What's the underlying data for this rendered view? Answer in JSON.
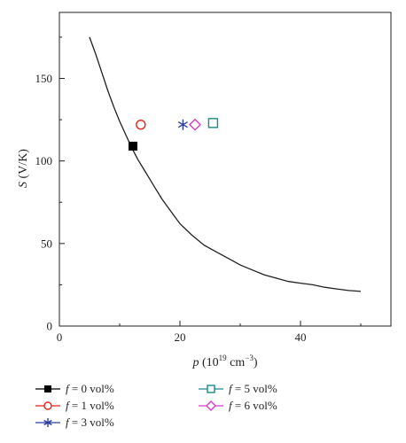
{
  "chart_data": {
    "type": "scatter",
    "xlabel": {
      "var": "p",
      "rest_prefix": " (10",
      "sup": "19",
      "unit": " cm",
      "unit_sup": "−3",
      "close": ")"
    },
    "ylabel": {
      "var": "S",
      "rest": " (V/K)"
    },
    "xlim": [
      0,
      55
    ],
    "ylim": [
      0,
      190
    ],
    "xticks": [
      0,
      20,
      40
    ],
    "yticks": [
      0,
      50,
      100,
      150
    ],
    "grid": false,
    "legend_position": "bottom",
    "curve": {
      "x": [
        5,
        6,
        7,
        8,
        9,
        10,
        11,
        12,
        13,
        14,
        15,
        16,
        17,
        18,
        19,
        20,
        22,
        24,
        26,
        28,
        30,
        32,
        34,
        36,
        38,
        40,
        42,
        44,
        46,
        48,
        50
      ],
      "y": [
        175,
        165,
        154,
        143,
        133,
        124,
        116,
        108,
        101,
        95,
        89,
        83,
        77,
        72,
        67,
        62,
        55,
        49,
        45,
        41,
        37,
        34,
        31,
        29,
        27,
        26,
        25,
        23.5,
        22.5,
        21.5,
        21
      ],
      "color": "#231f20"
    },
    "series": [
      {
        "name": "f = 0 vol%",
        "var": "f",
        "label": " = 0 vol%",
        "x": [
          12.2
        ],
        "y": [
          109
        ],
        "marker": "square-filled",
        "color": "#000000"
      },
      {
        "name": "f = 1 vol%",
        "var": "f",
        "label": " = 1 vol%",
        "x": [
          13.5
        ],
        "y": [
          122
        ],
        "marker": "circle",
        "color": "#e2231a"
      },
      {
        "name": "f = 3 vol%",
        "var": "f",
        "label": " = 3 vol%",
        "x": [
          20.5
        ],
        "y": [
          122
        ],
        "marker": "star",
        "color": "#2b3da2"
      },
      {
        "name": "f = 5 vol%",
        "var": "f",
        "label": " = 5 vol%",
        "x": [
          25.5
        ],
        "y": [
          123
        ],
        "marker": "square",
        "color": "#1a8a8a"
      },
      {
        "name": "f = 6 vol%",
        "var": "f",
        "label": " = 6 vol%",
        "x": [
          22.5
        ],
        "y": [
          122
        ],
        "marker": "diamond",
        "color": "#d23ad2"
      }
    ]
  }
}
